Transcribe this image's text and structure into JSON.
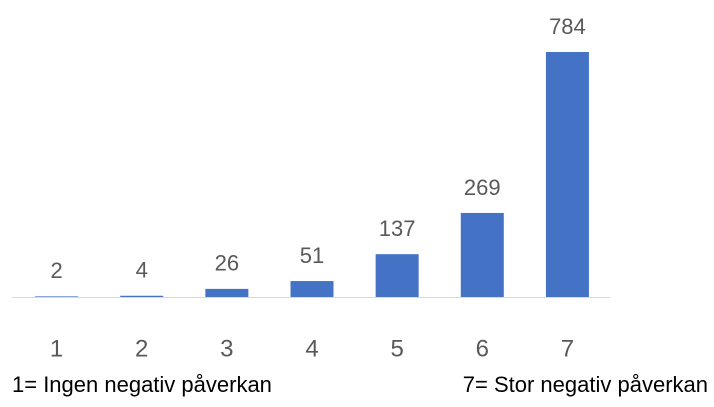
{
  "chart_data": {
    "type": "bar",
    "categories": [
      "1",
      "2",
      "3",
      "4",
      "5",
      "6",
      "7"
    ],
    "values": [
      2,
      4,
      26,
      51,
      137,
      269,
      784
    ],
    "color": "#4472c4",
    "annotations": [
      "1= Ingen negativ påverkan",
      "7= Stor negativ påverkan"
    ]
  }
}
